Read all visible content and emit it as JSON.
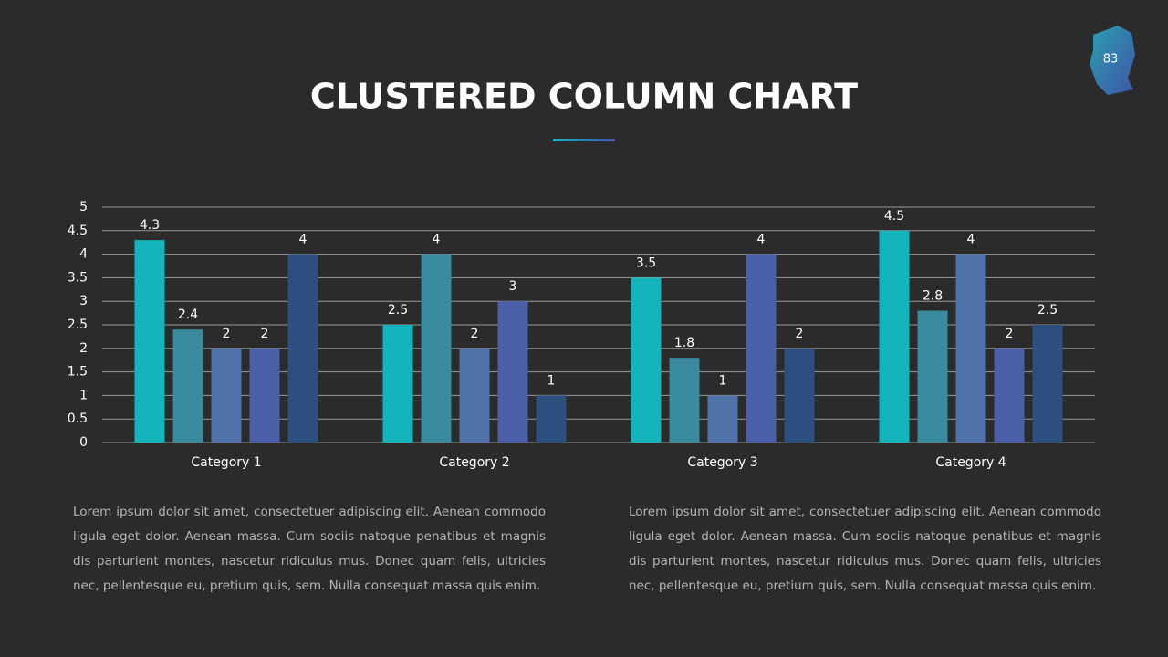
{
  "page_number": "83",
  "chart_data": {
    "type": "bar",
    "title": "CLUSTERED COLUMN CHART",
    "categories": [
      "Category 1",
      "Category 2",
      "Category 3",
      "Category 4"
    ],
    "series": [
      {
        "color": "#14b4bc",
        "values": [
          4.3,
          2.5,
          3.5,
          4.5
        ]
      },
      {
        "color": "#3a8a9e",
        "values": [
          2.4,
          4,
          1.8,
          2.8
        ]
      },
      {
        "color": "#4e72a8",
        "values": [
          2,
          2,
          1,
          4
        ]
      },
      {
        "color": "#4a5fa8",
        "values": [
          2,
          3,
          4,
          2
        ]
      },
      {
        "color": "#2c4f80",
        "values": [
          4,
          1,
          2,
          2.5
        ]
      }
    ],
    "ylim": [
      0,
      5
    ],
    "yticks": [
      0,
      0.5,
      1,
      1.5,
      2,
      2.5,
      3,
      3.5,
      4,
      4.5,
      5
    ],
    "grid": true,
    "data_labels": true
  },
  "paragraphs": [
    "Lorem ipsum dolor sit amet, consectetuer adipiscing elit. Aenean commodo ligula eget dolor. Aenean massa. Cum sociis natoque penatibus et magnis dis parturient montes, nascetur ridiculus mus. Donec quam felis, ultricies nec, pellentesque eu, pretium quis, sem. Nulla consequat massa quis enim.",
    "Lorem ipsum dolor sit amet, consectetuer adipiscing elit. Aenean commodo ligula eget dolor. Aenean massa. Cum sociis natoque penatibus et magnis dis parturient montes, nascetur ridiculus mus. Donec quam felis, ultricies nec, pellentesque eu, pretium quis, sem. Nulla consequat massa quis enim."
  ]
}
